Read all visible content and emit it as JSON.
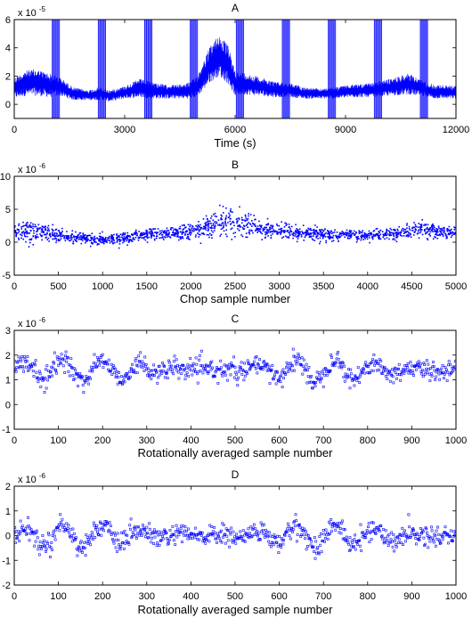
{
  "chart_data": [
    {
      "type": "line",
      "title": "A",
      "xlabel": "Time (s)",
      "ylabel": "",
      "xlim": [
        0,
        12000
      ],
      "ylim": [
        -1,
        6
      ],
      "y_exponent_label": "x 10",
      "y_exponent": "-5",
      "xticks": [
        0,
        3000,
        6000,
        9000,
        12000
      ],
      "yticks": [
        0,
        2,
        4,
        6
      ],
      "grid": false,
      "color": "#0000ff",
      "envelope": [
        {
          "x": 0,
          "lo": 0.4,
          "hi": 1.9
        },
        {
          "x": 300,
          "lo": 0.6,
          "hi": 2.4
        },
        {
          "x": 600,
          "lo": 0.6,
          "hi": 2.5
        },
        {
          "x": 950,
          "lo": 0.5,
          "hi": 2.2
        },
        {
          "x": 1250,
          "lo": 0.6,
          "hi": 1.9
        },
        {
          "x": 1600,
          "lo": 0.3,
          "hi": 1.2
        },
        {
          "x": 2000,
          "lo": 0.3,
          "hi": 1.0
        },
        {
          "x": 2300,
          "lo": 0.3,
          "hi": 1.2
        },
        {
          "x": 2600,
          "lo": 0.2,
          "hi": 1.0
        },
        {
          "x": 3000,
          "lo": 0.4,
          "hi": 1.3
        },
        {
          "x": 3400,
          "lo": 0.5,
          "hi": 1.8
        },
        {
          "x": 3700,
          "lo": 0.4,
          "hi": 1.6
        },
        {
          "x": 4100,
          "lo": 0.4,
          "hi": 1.4
        },
        {
          "x": 4500,
          "lo": 0.4,
          "hi": 1.4
        },
        {
          "x": 4800,
          "lo": 0.4,
          "hi": 1.6
        },
        {
          "x": 5000,
          "lo": 0.6,
          "hi": 2.2
        },
        {
          "x": 5300,
          "lo": 1.5,
          "hi": 4.0
        },
        {
          "x": 5550,
          "lo": 2.0,
          "hi": 5.0
        },
        {
          "x": 5800,
          "lo": 1.5,
          "hi": 4.2
        },
        {
          "x": 6000,
          "lo": 0.6,
          "hi": 2.4
        },
        {
          "x": 6300,
          "lo": 0.7,
          "hi": 2.2
        },
        {
          "x": 6700,
          "lo": 0.6,
          "hi": 1.9
        },
        {
          "x": 7100,
          "lo": 0.5,
          "hi": 1.6
        },
        {
          "x": 7500,
          "lo": 0.5,
          "hi": 1.5
        },
        {
          "x": 7900,
          "lo": 0.4,
          "hi": 1.2
        },
        {
          "x": 8300,
          "lo": 0.4,
          "hi": 1.1
        },
        {
          "x": 8700,
          "lo": 0.4,
          "hi": 1.2
        },
        {
          "x": 9200,
          "lo": 0.5,
          "hi": 1.4
        },
        {
          "x": 9700,
          "lo": 0.5,
          "hi": 1.5
        },
        {
          "x": 10200,
          "lo": 0.6,
          "hi": 1.8
        },
        {
          "x": 10700,
          "lo": 0.7,
          "hi": 2.2
        },
        {
          "x": 11000,
          "lo": 0.6,
          "hi": 1.8
        },
        {
          "x": 11400,
          "lo": 0.4,
          "hi": 1.4
        },
        {
          "x": 12000,
          "lo": 0.4,
          "hi": 1.3
        }
      ],
      "spike_times": [
        1130,
        2380,
        3640,
        4880,
        6130,
        7380,
        8630,
        9880,
        11130
      ]
    },
    {
      "type": "scatter",
      "title": "B",
      "xlabel": "Chop sample number",
      "ylabel": "",
      "xlim": [
        0,
        5000
      ],
      "ylim": [
        -5,
        10
      ],
      "y_exponent_label": "x 10",
      "y_exponent": "-6",
      "xticks": [
        0,
        500,
        1000,
        1500,
        2000,
        2500,
        3000,
        3500,
        4000,
        4500,
        5000
      ],
      "yticks": [
        -5,
        0,
        5,
        10
      ],
      "grid": false,
      "color": "#0000ff",
      "trend": [
        {
          "x": 0,
          "mean": 1.8,
          "spread": 1.2
        },
        {
          "x": 300,
          "mean": 1.6,
          "spread": 1.2
        },
        {
          "x": 600,
          "mean": 0.8,
          "spread": 0.8
        },
        {
          "x": 1000,
          "mean": 0.4,
          "spread": 0.7
        },
        {
          "x": 1300,
          "mean": 0.6,
          "spread": 0.7
        },
        {
          "x": 1600,
          "mean": 1.3,
          "spread": 0.8
        },
        {
          "x": 2000,
          "mean": 1.5,
          "spread": 0.9
        },
        {
          "x": 2200,
          "mean": 2.5,
          "spread": 1.5
        },
        {
          "x": 2400,
          "mean": 3.2,
          "spread": 1.8
        },
        {
          "x": 2600,
          "mean": 2.8,
          "spread": 1.6
        },
        {
          "x": 2800,
          "mean": 1.8,
          "spread": 1.0
        },
        {
          "x": 3200,
          "mean": 1.5,
          "spread": 0.8
        },
        {
          "x": 3600,
          "mean": 1.1,
          "spread": 0.7
        },
        {
          "x": 4000,
          "mean": 1.0,
          "spread": 0.7
        },
        {
          "x": 4400,
          "mean": 1.4,
          "spread": 0.8
        },
        {
          "x": 4650,
          "mean": 2.0,
          "spread": 1.0
        },
        {
          "x": 5000,
          "mean": 1.2,
          "spread": 0.8
        }
      ]
    },
    {
      "type": "scatter",
      "title": "C",
      "xlabel": "Rotationally averaged sample number",
      "ylabel": "",
      "xlim": [
        0,
        1000
      ],
      "ylim": [
        -1,
        3
      ],
      "y_exponent_label": "x 10",
      "y_exponent": "-6",
      "xticks": [
        0,
        100,
        200,
        300,
        400,
        500,
        600,
        700,
        800,
        900,
        1000
      ],
      "yticks": [
        -1,
        0,
        1,
        2,
        3
      ],
      "grid": false,
      "color": "#0000ff",
      "baseline": 1.4,
      "oscillation_amplitude": 0.45,
      "noise": 0.2
    },
    {
      "type": "scatter",
      "title": "D",
      "xlabel": "Rotationally averaged sample number",
      "ylabel": "",
      "xlim": [
        0,
        1000
      ],
      "ylim": [
        -2,
        2
      ],
      "y_exponent_label": "x 10",
      "y_exponent": "-6",
      "xticks": [
        0,
        100,
        200,
        300,
        400,
        500,
        600,
        700,
        800,
        900,
        1000
      ],
      "yticks": [
        -2,
        -1,
        0,
        1,
        2
      ],
      "grid": false,
      "color": "#0000ff",
      "baseline": 0.0,
      "oscillation_amplitude": 0.45,
      "noise": 0.2
    }
  ]
}
